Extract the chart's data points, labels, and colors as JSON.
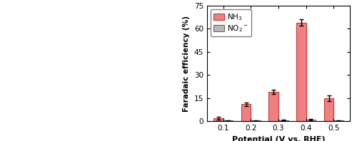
{
  "potentials": [
    0.1,
    0.2,
    0.3,
    0.4,
    0.5
  ],
  "nh3_values": [
    2.0,
    11.0,
    19.0,
    64.0,
    15.0
  ],
  "nh3_errors": [
    0.8,
    1.2,
    1.5,
    2.0,
    1.8
  ],
  "no2_values": [
    0.5,
    0.4,
    0.8,
    1.0,
    0.5
  ],
  "no2_errors": [
    0.3,
    0.3,
    0.3,
    0.4,
    0.3
  ],
  "nh3_color": "#f08080",
  "nh3_edge_color": "#cc3333",
  "no2_color": "#b8b8b8",
  "no2_edge_color": "#666666",
  "ylabel": "Faradaic efficiency (%)",
  "xlabel": "Potential (V vs. RHE)",
  "ylim": [
    0,
    75
  ],
  "yticks": [
    0,
    15,
    30,
    45,
    60,
    75
  ],
  "legend_nh3": "NH$_3$",
  "legend_no2": "NO$_2$$^-$",
  "bar_width": 0.35,
  "figsize": [
    5.0,
    1.98
  ],
  "dpi": 100
}
